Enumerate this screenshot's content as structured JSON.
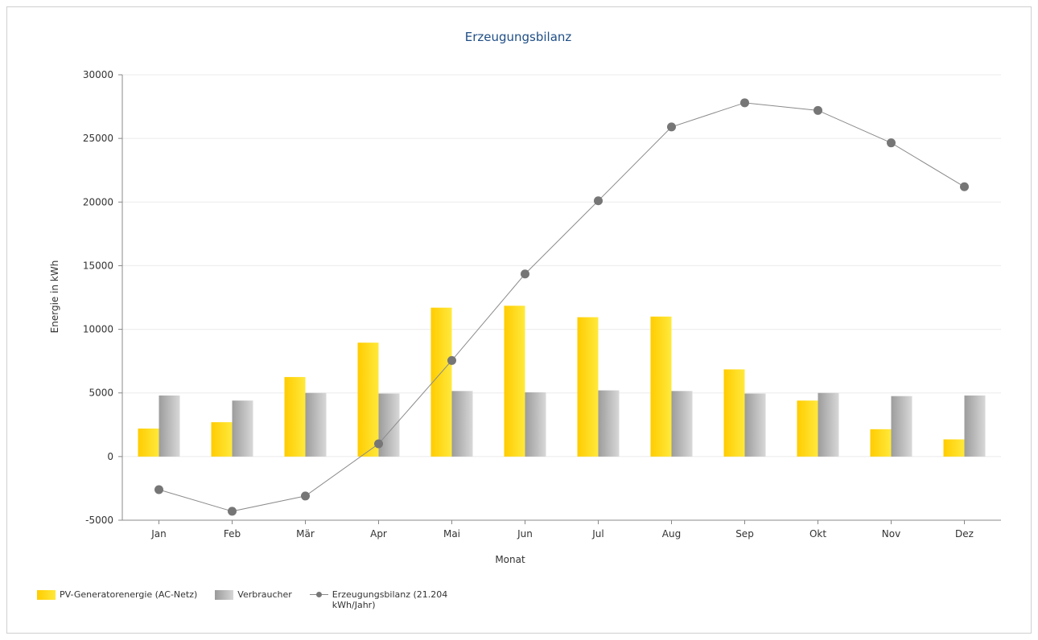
{
  "chart_data": {
    "type": "bar",
    "title": "Erzeugungsbilanz",
    "xlabel": "Monat",
    "ylabel": "Energie in kWh",
    "ylim": [
      -5000,
      30000
    ],
    "yticks": [
      -5000,
      0,
      5000,
      10000,
      15000,
      20000,
      25000,
      30000
    ],
    "grid": true,
    "legend_position": "bottom-left",
    "categories": [
      "Jan",
      "Feb",
      "Mär",
      "Apr",
      "Mai",
      "Jun",
      "Jul",
      "Aug",
      "Sep",
      "Okt",
      "Nov",
      "Dez"
    ],
    "series": [
      {
        "name": "PV-Generatorenergie (AC-Netz)",
        "type": "bar",
        "color": "#ffd200",
        "values": [
          2200,
          2700,
          6250,
          8950,
          11700,
          11850,
          10950,
          11000,
          6850,
          4400,
          2150,
          1350
        ]
      },
      {
        "name": "Verbraucher",
        "type": "bar",
        "color": "#b4b4b4",
        "values": [
          4800,
          4400,
          5000,
          4950,
          5150,
          5050,
          5200,
          5150,
          4950,
          5000,
          4750,
          4800
        ]
      },
      {
        "name": "Erzeugungsbilanz (21.204 kWh/Jahr)",
        "type": "line",
        "color": "#777777",
        "values": [
          -2600,
          -4300,
          -3100,
          1000,
          7550,
          14350,
          20100,
          25900,
          27800,
          27200,
          24650,
          21200
        ]
      }
    ]
  }
}
